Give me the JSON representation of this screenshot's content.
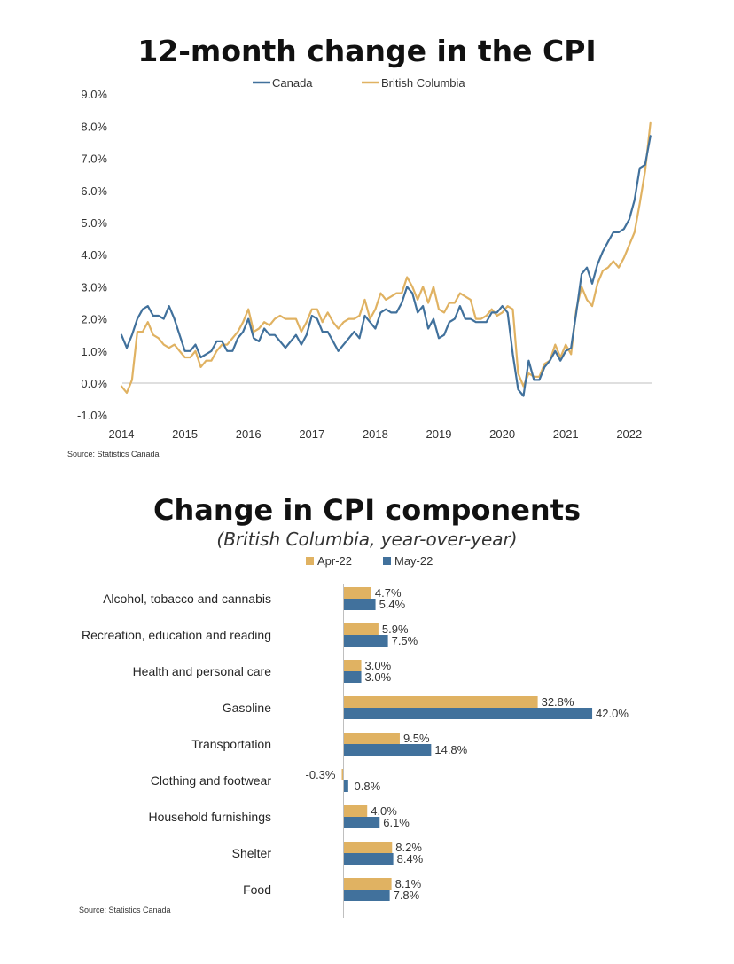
{
  "colors": {
    "canada": "#41719c",
    "bc": "#e0b262",
    "axis": "#bfbfbf"
  },
  "chart_data": [
    {
      "type": "line",
      "title": "12-month change in the CPI",
      "source": "Source: Statistics Canada",
      "legend": [
        "Canada",
        "British Columbia"
      ],
      "legend_position": "top",
      "ylim": [
        -1.0,
        9.0
      ],
      "yticks": [
        "9.0%",
        "8.0%",
        "7.0%",
        "6.0%",
        "5.0%",
        "4.0%",
        "3.0%",
        "2.0%",
        "1.0%",
        "0.0%",
        "-1.0%"
      ],
      "ytick_values": [
        9,
        8,
        7,
        6,
        5,
        4,
        3,
        2,
        1,
        0,
        -1
      ],
      "xticks": [
        "2014",
        "2015",
        "2016",
        "2017",
        "2018",
        "2019",
        "2020",
        "2021",
        "2022"
      ],
      "x_start": 2014,
      "x_step_months": 1,
      "series": [
        {
          "name": "Canada",
          "values": [
            1.5,
            1.1,
            1.5,
            2.0,
            2.3,
            2.4,
            2.1,
            2.1,
            2.0,
            2.4,
            2.0,
            1.5,
            1.0,
            1.0,
            1.2,
            0.8,
            0.9,
            1.0,
            1.3,
            1.3,
            1.0,
            1.0,
            1.4,
            1.6,
            2.0,
            1.4,
            1.3,
            1.7,
            1.5,
            1.5,
            1.3,
            1.1,
            1.3,
            1.5,
            1.2,
            1.5,
            2.1,
            2.0,
            1.6,
            1.6,
            1.3,
            1.0,
            1.2,
            1.4,
            1.6,
            1.4,
            2.1,
            1.9,
            1.7,
            2.2,
            2.3,
            2.2,
            2.2,
            2.5,
            3.0,
            2.8,
            2.2,
            2.4,
            1.7,
            2.0,
            1.4,
            1.5,
            1.9,
            2.0,
            2.4,
            2.0,
            2.0,
            1.9,
            1.9,
            1.9,
            2.2,
            2.2,
            2.4,
            2.2,
            0.9,
            -0.2,
            -0.4,
            0.7,
            0.1,
            0.1,
            0.5,
            0.7,
            1.0,
            0.7,
            1.0,
            1.1,
            2.2,
            3.4,
            3.6,
            3.1,
            3.7,
            4.1,
            4.4,
            4.7,
            4.7,
            4.8,
            5.1,
            5.7,
            6.7,
            6.8,
            7.7
          ]
        },
        {
          "name": "British Columbia",
          "values": [
            -0.1,
            -0.3,
            0.1,
            1.6,
            1.6,
            1.9,
            1.5,
            1.4,
            1.2,
            1.1,
            1.2,
            1.0,
            0.8,
            0.8,
            1.0,
            0.5,
            0.7,
            0.7,
            1.0,
            1.2,
            1.2,
            1.4,
            1.6,
            1.9,
            2.3,
            1.6,
            1.7,
            1.9,
            1.8,
            2.0,
            2.1,
            2.0,
            2.0,
            2.0,
            1.6,
            1.9,
            2.3,
            2.3,
            1.9,
            2.2,
            1.9,
            1.7,
            1.9,
            2.0,
            2.0,
            2.1,
            2.6,
            2.0,
            2.3,
            2.8,
            2.6,
            2.7,
            2.8,
            2.8,
            3.3,
            3.0,
            2.6,
            3.0,
            2.5,
            3.0,
            2.3,
            2.2,
            2.5,
            2.5,
            2.8,
            2.7,
            2.6,
            2.0,
            2.0,
            2.1,
            2.3,
            2.1,
            2.2,
            2.4,
            2.3,
            0.3,
            -0.1,
            0.3,
            0.2,
            0.2,
            0.6,
            0.7,
            1.2,
            0.8,
            1.2,
            0.9,
            2.3,
            3.0,
            2.6,
            2.4,
            3.1,
            3.5,
            3.6,
            3.8,
            3.6,
            3.9,
            4.3,
            4.7,
            5.6,
            6.6,
            8.1
          ]
        }
      ]
    },
    {
      "type": "bar",
      "orientation": "horizontal",
      "title": "Change in CPI components",
      "subtitle": "(British Columbia, year-over-year)",
      "source": "Source: Statistics Canada",
      "legend": [
        "Apr-22",
        "May-22"
      ],
      "legend_position": "top",
      "categories": [
        "Alcohol, tobacco and cannabis",
        "Recreation, education and reading",
        "Health and personal care",
        "Gasoline",
        "Transportation",
        "Clothing and footwear",
        "Household furnishings",
        "Shelter",
        "Food"
      ],
      "series": [
        {
          "name": "Apr-22",
          "values": [
            4.7,
            5.9,
            3.0,
            32.8,
            9.5,
            -0.3,
            4.0,
            8.2,
            8.1
          ],
          "labels": [
            "4.7%",
            "5.9%",
            "3.0%",
            "32.8%",
            "9.5%",
            "-0.3%",
            "4.0%",
            "8.2%",
            "8.1%"
          ]
        },
        {
          "name": "May-22",
          "values": [
            5.4,
            7.5,
            3.0,
            42.0,
            14.8,
            0.8,
            6.1,
            8.4,
            7.8
          ],
          "labels": [
            "5.4%",
            "7.5%",
            "3.0%",
            "42.0%",
            "14.8%",
            "0.8%",
            "6.1%",
            "8.4%",
            "7.8%"
          ]
        }
      ]
    }
  ]
}
